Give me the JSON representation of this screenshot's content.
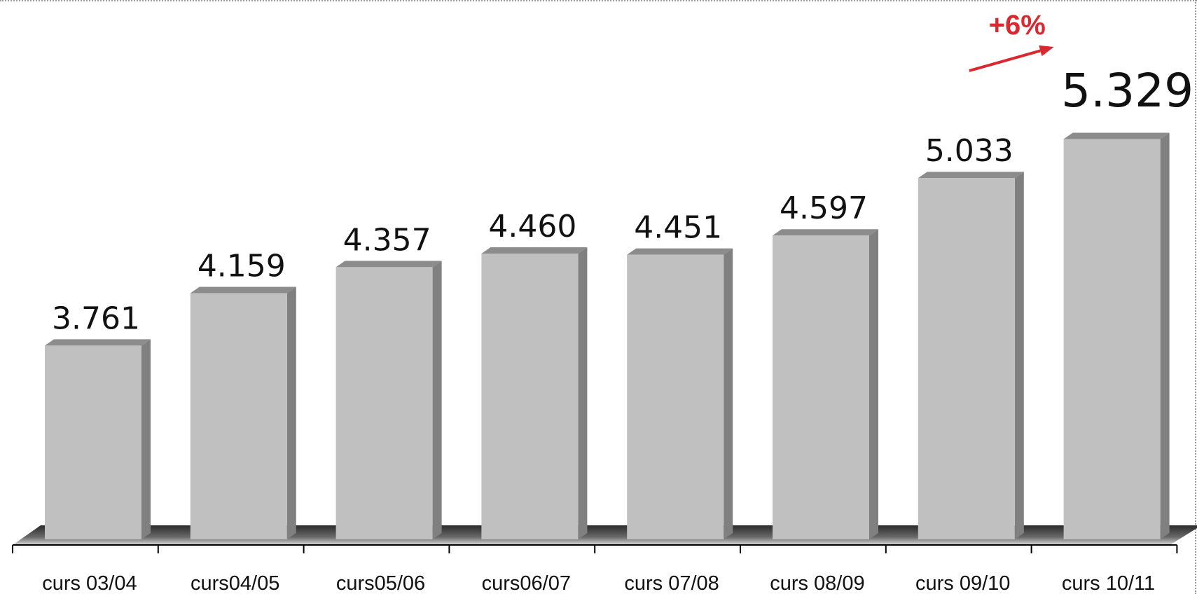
{
  "chart_data": {
    "type": "bar",
    "style": "3d-columns",
    "categories": [
      "curs 03/04",
      "curs04/05",
      "curs05/06",
      "curs06/07",
      "curs 07/08",
      "curs 08/09",
      "curs 09/10",
      "curs 10/11"
    ],
    "values": [
      3761,
      4159,
      4357,
      4460,
      4451,
      4597,
      5033,
      5329
    ],
    "value_labels": [
      "3.761",
      "4.159",
      "4.357",
      "4.460",
      "4.451",
      "4.597",
      "5.033",
      "5.329"
    ],
    "highlight_index": 7,
    "annotation": {
      "text": "+6%",
      "color": "#d9282f",
      "from_index": 6,
      "to_index": 7
    },
    "title": "",
    "xlabel": "",
    "ylabel": "",
    "ylim": [
      2290,
      5300
    ],
    "grid": false,
    "legend": "none",
    "colors": {
      "front": "#c0c0c0",
      "side": "#808080",
      "top": "#8c8c8c",
      "floor": "#595959",
      "axis": "#000000"
    }
  }
}
